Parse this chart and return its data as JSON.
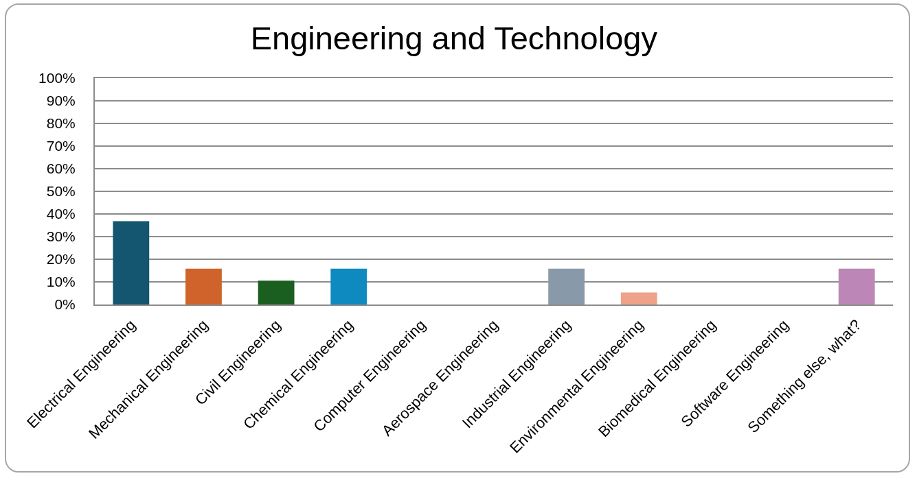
{
  "chart_data": {
    "type": "bar",
    "title": "Engineering and Technology",
    "categories": [
      "Electrical Engineering",
      "Mechanical Engineering",
      "Civil Engineering",
      "Chemical Engineering",
      "Computer Engineering",
      "Aerospace Engineering",
      "Industrial Engineering",
      "Environmental Engineering",
      "Biomedical Engineering",
      "Software Engineering",
      "Something else, what?"
    ],
    "values": [
      36.8,
      15.8,
      10.5,
      15.8,
      0,
      0,
      15.8,
      5.3,
      0,
      0,
      15.8
    ],
    "colors": [
      "#14556f",
      "#d0632b",
      "#1a5e20",
      "#0e8ac0",
      "#4e6f8a",
      "#7a4f8c",
      "#8899aa",
      "#eea287",
      "#6f9c5a",
      "#c9a33a",
      "#bc87b6"
    ],
    "ylim": [
      0,
      100
    ],
    "yticks": [
      {
        "value": 0,
        "label": "0%"
      },
      {
        "value": 10,
        "label": "10%"
      },
      {
        "value": 20,
        "label": "20%"
      },
      {
        "value": 30,
        "label": "30%"
      },
      {
        "value": 40,
        "label": "40%"
      },
      {
        "value": 50,
        "label": "50%"
      },
      {
        "value": 60,
        "label": "60%"
      },
      {
        "value": 70,
        "label": "70%"
      },
      {
        "value": 80,
        "label": "80%"
      },
      {
        "value": 90,
        "label": "90%"
      },
      {
        "value": 100,
        "label": "100%"
      }
    ],
    "grid": "y"
  }
}
